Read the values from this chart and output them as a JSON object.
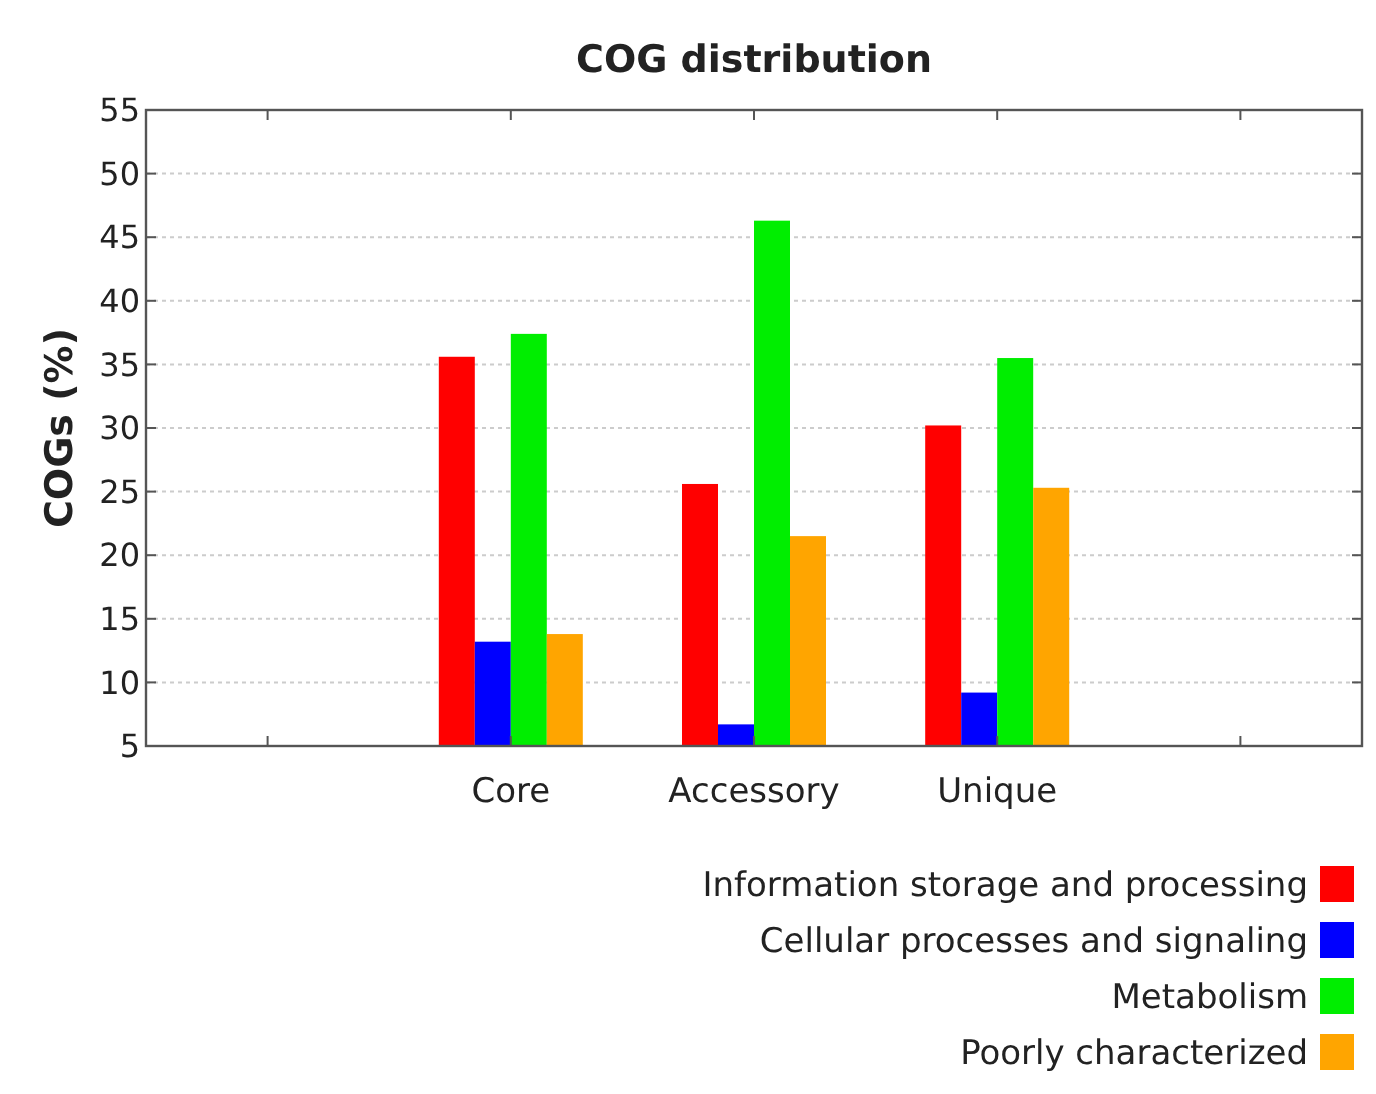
{
  "chart_data": {
    "type": "bar",
    "title": "COG distribution",
    "ylabel": "COGs (%)",
    "categories": [
      null,
      "Core",
      "Accessory",
      "Unique",
      null
    ],
    "series": [
      {
        "name": "Information storage and processing",
        "color": "#ff0000",
        "values": [
          null,
          35.6,
          25.6,
          30.2,
          null
        ]
      },
      {
        "name": "Cellular processes and signaling",
        "color": "#0000ff",
        "values": [
          null,
          13.2,
          6.7,
          9.2,
          null
        ]
      },
      {
        "name": "Metabolism",
        "color": "#00ee00",
        "values": [
          null,
          37.4,
          46.3,
          35.5,
          null
        ]
      },
      {
        "name": "Poorly characterized",
        "color": "#ffa500",
        "values": [
          null,
          13.8,
          21.5,
          25.3,
          null
        ]
      }
    ],
    "ylim": [
      5,
      55
    ],
    "yticks": [
      5,
      10,
      15,
      20,
      25,
      30,
      35,
      40,
      45,
      50,
      55
    ],
    "grid": "y",
    "legend": "bottom right"
  }
}
